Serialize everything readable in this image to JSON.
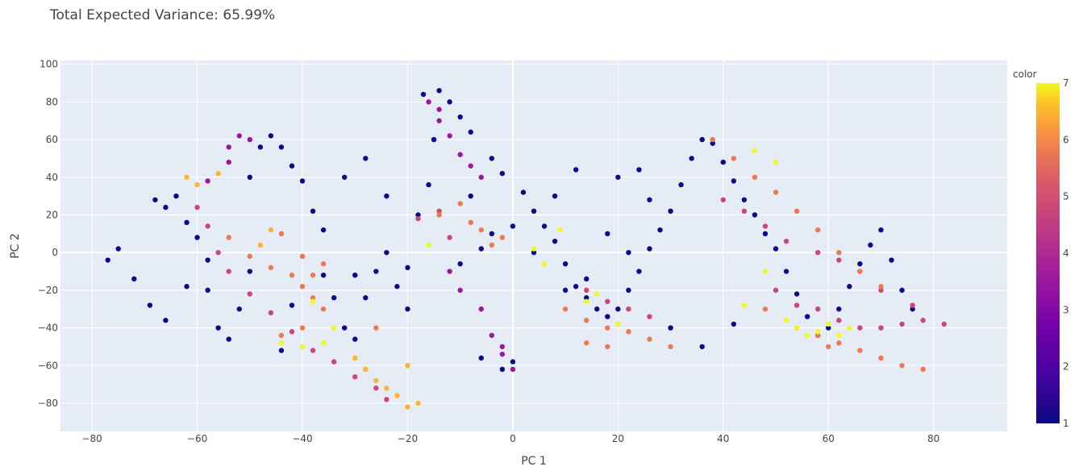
{
  "chart_data": {
    "type": "scatter",
    "title": "Total Expected Variance: 65.99%",
    "xlabel": "PC 1",
    "ylabel": "PC 2",
    "xlim": [
      -86,
      94
    ],
    "ylim": [
      -95,
      102
    ],
    "x_ticks": [
      -80,
      -60,
      -40,
      -20,
      0,
      20,
      40,
      60,
      80
    ],
    "y_ticks": [
      -80,
      -60,
      -40,
      -20,
      0,
      20,
      40,
      60,
      80,
      100
    ],
    "x_tick_labels": [
      "−80",
      "−60",
      "−40",
      "−20",
      "0",
      "20",
      "40",
      "60",
      "80"
    ],
    "y_tick_labels": [
      "−80",
      "−60",
      "−40",
      "−20",
      "0",
      "20",
      "40",
      "60",
      "80",
      "100"
    ],
    "grid": true,
    "colorscale": "plasma",
    "colorbar": {
      "title": "color",
      "min": 1,
      "max": 7,
      "ticks": [
        1,
        2,
        3,
        4,
        5,
        6,
        7
      ],
      "tick_labels": [
        "1",
        "2",
        "3",
        "4",
        "5",
        "6",
        "7"
      ],
      "placement": "right"
    },
    "colors": {
      "1": "#0d0887",
      "2": "#5c01a6",
      "3": "#9c179e",
      "4": "#cc4778",
      "5": "#ed7953",
      "6": "#fdb42f",
      "7": "#f0f921"
    },
    "series": [
      {
        "color_value": 1,
        "points": [
          [
            -75,
            2
          ],
          [
            -77,
            -4
          ],
          [
            -72,
            -14
          ],
          [
            -69,
            -28
          ],
          [
            -66,
            -36
          ],
          [
            -66,
            24
          ],
          [
            -68,
            28
          ],
          [
            -64,
            30
          ],
          [
            -62,
            16
          ],
          [
            -60,
            8
          ],
          [
            -58,
            -20
          ],
          [
            -56,
            -40
          ],
          [
            -54,
            -46
          ],
          [
            -52,
            -30
          ],
          [
            -50,
            -10
          ],
          [
            -50,
            40
          ],
          [
            -48,
            56
          ],
          [
            -46,
            62
          ],
          [
            -44,
            56
          ],
          [
            -42,
            46
          ],
          [
            -40,
            38
          ],
          [
            -38,
            22
          ],
          [
            -36,
            12
          ],
          [
            -34,
            -24
          ],
          [
            -32,
            -40
          ],
          [
            -30,
            -46
          ],
          [
            -28,
            -24
          ],
          [
            -26,
            -10
          ],
          [
            -24,
            0
          ],
          [
            -22,
            -18
          ],
          [
            -20,
            -8
          ],
          [
            -18,
            20
          ],
          [
            -16,
            36
          ],
          [
            -15,
            60
          ],
          [
            -17,
            84
          ],
          [
            -14,
            86
          ],
          [
            -12,
            80
          ],
          [
            -10,
            72
          ],
          [
            -8,
            64
          ],
          [
            -4,
            50
          ],
          [
            -2,
            42
          ],
          [
            2,
            32
          ],
          [
            4,
            22
          ],
          [
            6,
            14
          ],
          [
            8,
            6
          ],
          [
            10,
            -6
          ],
          [
            12,
            -18
          ],
          [
            14,
            -24
          ],
          [
            16,
            -30
          ],
          [
            18,
            -34
          ],
          [
            20,
            -30
          ],
          [
            22,
            -20
          ],
          [
            24,
            -10
          ],
          [
            26,
            2
          ],
          [
            28,
            12
          ],
          [
            30,
            22
          ],
          [
            32,
            36
          ],
          [
            34,
            50
          ],
          [
            36,
            60
          ],
          [
            38,
            58
          ],
          [
            40,
            48
          ],
          [
            42,
            38
          ],
          [
            44,
            28
          ],
          [
            46,
            20
          ],
          [
            48,
            10
          ],
          [
            50,
            2
          ],
          [
            52,
            -10
          ],
          [
            54,
            -22
          ],
          [
            56,
            -34
          ],
          [
            58,
            -44
          ],
          [
            60,
            -40
          ],
          [
            62,
            -30
          ],
          [
            64,
            -18
          ],
          [
            66,
            -6
          ],
          [
            68,
            4
          ],
          [
            70,
            12
          ],
          [
            72,
            -4
          ],
          [
            74,
            -20
          ],
          [
            76,
            -30
          ],
          [
            0,
            -58
          ],
          [
            -6,
            -56
          ],
          [
            -2,
            -62
          ],
          [
            10,
            -20
          ],
          [
            14,
            -14
          ],
          [
            30,
            -40
          ],
          [
            36,
            -50
          ],
          [
            42,
            -38
          ],
          [
            -44,
            -52
          ],
          [
            -58,
            -4
          ],
          [
            -62,
            -18
          ],
          [
            -10,
            -6
          ],
          [
            -6,
            2
          ],
          [
            -4,
            10
          ],
          [
            -8,
            30
          ],
          [
            0,
            14
          ],
          [
            4,
            0
          ],
          [
            20,
            40
          ],
          [
            24,
            44
          ],
          [
            26,
            28
          ],
          [
            -28,
            50
          ],
          [
            -32,
            40
          ],
          [
            -24,
            30
          ],
          [
            18,
            10
          ],
          [
            22,
            0
          ],
          [
            8,
            30
          ],
          [
            12,
            44
          ],
          [
            -36,
            -12
          ],
          [
            -42,
            -28
          ],
          [
            -30,
            -12
          ],
          [
            -20,
            -30
          ]
        ]
      },
      {
        "color_value": 3,
        "points": [
          [
            -52,
            62
          ],
          [
            -54,
            56
          ],
          [
            -58,
            38
          ],
          [
            -16,
            80
          ],
          [
            -14,
            70
          ],
          [
            -12,
            62
          ],
          [
            -10,
            52
          ],
          [
            -8,
            46
          ],
          [
            -6,
            40
          ],
          [
            -12,
            -10
          ],
          [
            -10,
            -20
          ],
          [
            -6,
            -30
          ],
          [
            -4,
            -44
          ],
          [
            -2,
            -54
          ],
          [
            0,
            -62
          ],
          [
            -2,
            -50
          ],
          [
            -54,
            48
          ],
          [
            -50,
            60
          ],
          [
            -14,
            76
          ]
        ]
      },
      {
        "color_value": 4,
        "points": [
          [
            -60,
            24
          ],
          [
            -58,
            14
          ],
          [
            -56,
            0
          ],
          [
            -54,
            -10
          ],
          [
            -50,
            -22
          ],
          [
            -46,
            -32
          ],
          [
            -42,
            -42
          ],
          [
            -38,
            -52
          ],
          [
            -34,
            -58
          ],
          [
            -30,
            -66
          ],
          [
            -26,
            -72
          ],
          [
            -24,
            -78
          ],
          [
            -18,
            18
          ],
          [
            -14,
            22
          ],
          [
            -12,
            8
          ],
          [
            50,
            -20
          ],
          [
            54,
            -28
          ],
          [
            58,
            -30
          ],
          [
            62,
            -36
          ],
          [
            66,
            -40
          ],
          [
            70,
            -40
          ],
          [
            74,
            -38
          ],
          [
            78,
            -36
          ],
          [
            82,
            -38
          ],
          [
            76,
            -28
          ],
          [
            70,
            -20
          ],
          [
            66,
            -10
          ],
          [
            62,
            -4
          ],
          [
            58,
            0
          ],
          [
            52,
            6
          ],
          [
            48,
            14
          ],
          [
            44,
            22
          ],
          [
            40,
            28
          ],
          [
            14,
            -20
          ],
          [
            18,
            -26
          ],
          [
            22,
            -30
          ],
          [
            26,
            -34
          ]
        ]
      },
      {
        "color_value": 5,
        "points": [
          [
            -54,
            8
          ],
          [
            -50,
            -2
          ],
          [
            -46,
            -8
          ],
          [
            -42,
            -12
          ],
          [
            -40,
            -18
          ],
          [
            -38,
            -24
          ],
          [
            -36,
            -30
          ],
          [
            -40,
            -40
          ],
          [
            -44,
            -44
          ],
          [
            -36,
            -6
          ],
          [
            -40,
            -2
          ],
          [
            -44,
            10
          ],
          [
            -38,
            -12
          ],
          [
            -26,
            -40
          ],
          [
            -4,
            4
          ],
          [
            -2,
            8
          ],
          [
            -6,
            12
          ],
          [
            10,
            -30
          ],
          [
            14,
            -36
          ],
          [
            18,
            -40
          ],
          [
            22,
            -42
          ],
          [
            26,
            -46
          ],
          [
            14,
            -48
          ],
          [
            18,
            -50
          ],
          [
            30,
            -50
          ],
          [
            38,
            60
          ],
          [
            42,
            50
          ],
          [
            46,
            40
          ],
          [
            50,
            32
          ],
          [
            54,
            22
          ],
          [
            58,
            12
          ],
          [
            62,
            0
          ],
          [
            66,
            -10
          ],
          [
            70,
            -18
          ],
          [
            58,
            -44
          ],
          [
            62,
            -48
          ],
          [
            66,
            -52
          ],
          [
            70,
            -56
          ],
          [
            74,
            -60
          ],
          [
            78,
            -62
          ],
          [
            60,
            -50
          ],
          [
            54,
            -40
          ],
          [
            48,
            -30
          ],
          [
            -14,
            20
          ],
          [
            -10,
            26
          ],
          [
            -8,
            16
          ]
        ]
      },
      {
        "color_value": 6,
        "points": [
          [
            -62,
            40
          ],
          [
            -60,
            36
          ],
          [
            -56,
            42
          ],
          [
            -30,
            -56
          ],
          [
            -28,
            -62
          ],
          [
            -26,
            -68
          ],
          [
            -24,
            -72
          ],
          [
            -22,
            -76
          ],
          [
            -20,
            -82
          ],
          [
            -18,
            -80
          ],
          [
            -46,
            12
          ],
          [
            -48,
            4
          ],
          [
            -20,
            -60
          ]
        ]
      },
      {
        "color_value": 7,
        "points": [
          [
            -34,
            -40
          ],
          [
            -38,
            -26
          ],
          [
            -40,
            -50
          ],
          [
            -44,
            -48
          ],
          [
            -36,
            -48
          ],
          [
            4,
            2
          ],
          [
            6,
            -6
          ],
          [
            9,
            12
          ],
          [
            -16,
            4
          ],
          [
            14,
            -26
          ],
          [
            16,
            -22
          ],
          [
            46,
            54
          ],
          [
            50,
            48
          ],
          [
            54,
            -40
          ],
          [
            58,
            -42
          ],
          [
            62,
            -44
          ],
          [
            60,
            -38
          ],
          [
            56,
            -44
          ],
          [
            64,
            -40
          ],
          [
            44,
            -28
          ],
          [
            20,
            -38
          ],
          [
            48,
            -10
          ],
          [
            52,
            -36
          ]
        ]
      }
    ]
  }
}
